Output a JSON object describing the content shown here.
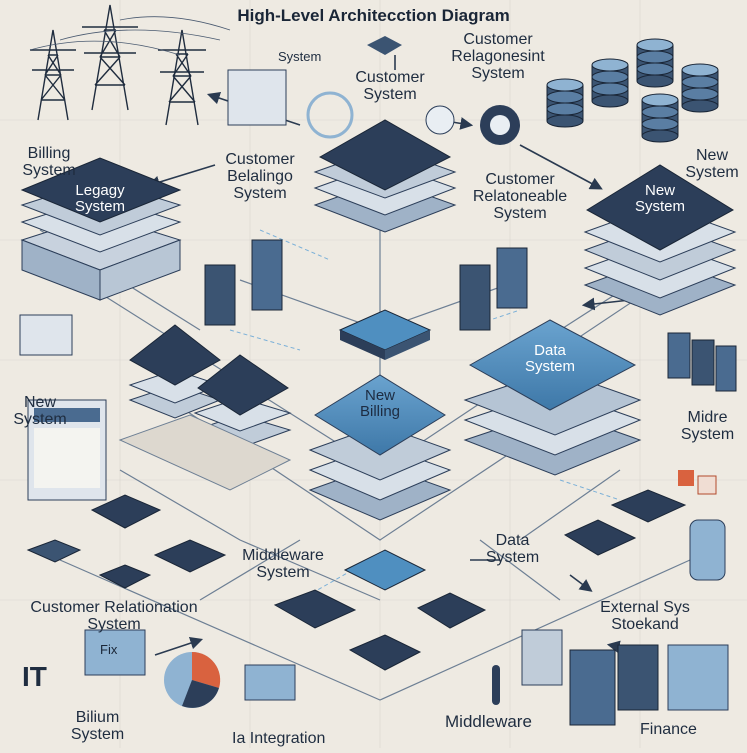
{
  "title": "High-Level Architecction Diagram",
  "stack_captions": {
    "legacy": "Legagy\nSystem",
    "new_top_right": "New\nSystem",
    "data": "Data\nSystem",
    "new_billing": "New\nBilling"
  },
  "labels": {
    "system_top": "System",
    "customer_system": "Customer\nSystem",
    "customer_relation_top": "Customer\nRelagonesint\nSystem",
    "billing_system": "Billing\nSystem",
    "customer_bellingo": "Customer\nBelalingo\nSystem",
    "customer_relation_mid": "Customer\nRelatoneable\nSystem",
    "new_system_right": "New\nSystem",
    "new_system_left": "New\nSystem",
    "midre_system": "Midre\nSystem",
    "middleware_system": "Middleware\nSystem",
    "data_system_lower": "Data\nSystem",
    "customer_relationation": "Customer Relationation\nSystem",
    "external_stoekand": "External Sys\nStoekand",
    "it": "IT",
    "bilium_system": "Bilium\nSystem",
    "ia_integration": "Ia Integration",
    "middleware_bottom": "Middleware",
    "finance": "Finance",
    "fix_screen": "Fix"
  },
  "colors": {
    "background": "#eeeae2",
    "navy": "#2c3e59",
    "light_blue": "#8fb3d2",
    "accent_blue": "#4f8fc0",
    "layer_light": "#d5dde6",
    "arrow": "#2a3a50"
  }
}
